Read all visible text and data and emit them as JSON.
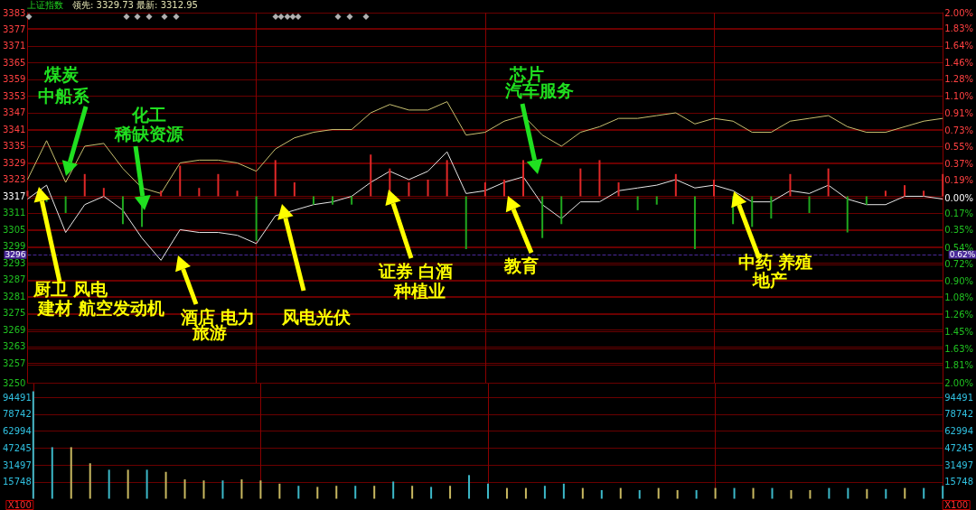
{
  "chart_data": [
    {
      "type": "line",
      "title": "上证指数",
      "subtitle": "领先: 3329.73 最新: 3312.95",
      "categories": [
        null,
        null,
        null,
        null,
        null,
        null,
        null,
        null,
        null,
        null,
        null,
        null,
        null,
        null,
        null,
        null,
        null,
        null,
        null,
        null,
        null,
        null,
        null,
        null,
        null,
        null,
        null,
        null,
        null,
        null,
        null,
        null,
        null,
        null,
        null,
        null,
        null,
        null,
        null,
        null,
        null,
        null,
        null,
        null,
        null,
        null,
        null,
        null,
        null
      ],
      "series": [
        {
          "color": "#e6e6e6",
          "values": [
            3316,
            3321,
            3304,
            3314,
            3317,
            3312,
            3302,
            3294,
            3305,
            3304,
            3304,
            3303,
            3300,
            3310,
            3312,
            3314,
            3315,
            3317,
            3322,
            3326,
            3323,
            3326,
            3333,
            3318,
            3319,
            3322,
            3324,
            3314,
            3309,
            3315,
            3315,
            3319,
            3320,
            3321,
            3323,
            3320,
            3321,
            3319,
            3315,
            3315,
            3319,
            3318,
            3321,
            3316,
            3314,
            3314,
            3317,
            3317,
            3316
          ]
        },
        {
          "color": "#c8c070",
          "values": [
            3323,
            3337,
            3322,
            3335,
            3336,
            3327,
            3320,
            3318,
            3329,
            3330,
            3330,
            3329,
            3326,
            3334,
            3338,
            3340,
            3341,
            3341,
            3347,
            3350,
            3348,
            3348,
            3351,
            3339,
            3340,
            3344,
            3346,
            3339,
            3335,
            3340,
            3342,
            3345,
            3345,
            3346,
            3347,
            3343,
            3345,
            3344,
            3340,
            3340,
            3344,
            3345,
            3346,
            3342,
            3340,
            3340,
            3342,
            3344,
            3345
          ]
        },
        {
          "type": "bar",
          "base": [
            3317,
            3317,
            3317,
            3317,
            3317,
            3317,
            3317,
            3317,
            3317,
            3317,
            3317,
            3317,
            3317,
            3317,
            3317,
            3317,
            3317,
            3317,
            3317,
            3317,
            3317,
            3317,
            3317,
            3317,
            3317,
            3317,
            3317,
            3317,
            3317,
            3317,
            3317,
            3317,
            3317,
            3317,
            3317,
            3317,
            3317,
            3317,
            3317,
            3317,
            3317,
            3317,
            3317,
            3317,
            3317,
            3317,
            3317,
            3317,
            3317
          ],
          "values": [
            2,
            -2,
            -6,
            8,
            3,
            -10,
            -11,
            2,
            11,
            3,
            8,
            2,
            -16,
            13,
            5,
            -3,
            -3,
            -3,
            15,
            10,
            5,
            6,
            13,
            -19,
            5,
            6,
            13,
            -15,
            -10,
            10,
            13,
            5,
            -5,
            -3,
            8,
            -19,
            6,
            -10,
            -11,
            -8,
            8,
            -6,
            10,
            -13,
            -3,
            2,
            4,
            2,
            8
          ],
          "colors": [
            "#e02828",
            "#1fa81f",
            "#1fa81f",
            "#e02828",
            "#e02828",
            "#1fa81f",
            "#1fa81f",
            "#e02828",
            "#e02828",
            "#e02828",
            "#e02828",
            "#e02828",
            "#1fa81f",
            "#e02828",
            "#e02828",
            "#1fa81f",
            "#1fa81f",
            "#1fa81f",
            "#e02828",
            "#e02828",
            "#e02828",
            "#e02828",
            "#e02828",
            "#1fa81f",
            "#e02828",
            "#e02828",
            "#e02828",
            "#1fa81f",
            "#1fa81f",
            "#e02828",
            "#e02828",
            "#e02828",
            "#1fa81f",
            "#1fa81f",
            "#e02828",
            "#1fa81f",
            "#e02828",
            "#1fa81f",
            "#1fa81f",
            "#1fa81f",
            "#e02828",
            "#1fa81f",
            "#e02828",
            "#1fa81f",
            "#1fa81f",
            "#e02828",
            "#e02828",
            "#e02828",
            "#e02828"
          ]
        }
      ],
      "ylim": [
        3250,
        3383
      ],
      "yticks": [
        3383,
        3377,
        3371,
        3365,
        3359,
        3353,
        3347,
        3341,
        3335,
        3329,
        3323,
        3317,
        3311,
        3305,
        3299,
        3293,
        3287,
        3281,
        3275,
        3269,
        3263,
        3257,
        3250
      ],
      "y2lim": [
        -2,
        2
      ],
      "y2ticks": [
        {
          "value": 2,
          "label": "2.00%"
        },
        {
          "value": 1.83,
          "label": "1.83%"
        },
        {
          "value": 1.64,
          "label": "1.64%"
        },
        {
          "value": 1.46,
          "label": "1.46%"
        },
        {
          "value": 1.28,
          "label": "1.28%"
        },
        {
          "value": 1.1,
          "label": "1.10%"
        },
        {
          "value": 0.91,
          "label": "0.91%"
        },
        {
          "value": 0.73,
          "label": "0.73%"
        },
        {
          "value": 0.55,
          "label": "0.55%"
        },
        {
          "value": 0.37,
          "label": "0.37%"
        },
        {
          "value": 0.19,
          "label": "0.19%"
        },
        {
          "value": 0,
          "label": "0.00%"
        },
        {
          "value": -0.17,
          "label": "0.17%"
        },
        {
          "value": -0.35,
          "label": "0.35%"
        },
        {
          "value": -0.54,
          "label": "0.54%"
        },
        {
          "value": -0.72,
          "label": "0.72%"
        },
        {
          "value": -0.9,
          "label": "0.90%"
        },
        {
          "value": -1.08,
          "label": "1.08%"
        },
        {
          "value": -1.26,
          "label": "1.26%"
        },
        {
          "value": -1.45,
          "label": "1.45%"
        },
        {
          "value": -1.63,
          "label": "1.63%"
        },
        {
          "value": -1.81,
          "label": "1.81%"
        },
        {
          "value": -2,
          "label": "2.00%"
        }
      ],
      "ref_lines": [
        {
          "axis": "y",
          "value": 3296,
          "label": "3296",
          "color": "#4a2a9a"
        }
      ],
      "annotations": [
        "煤炭",
        "中船系",
        "化工",
        "稀缺资源",
        "芯片",
        "汽车服务",
        "厨卫 风电",
        "建材 航空发动机",
        "酒店 电力",
        "旅游",
        "风电光伏",
        "证券 白酒",
        "种植业",
        "教育",
        "中药 养殖",
        "地产",
        "0.62%"
      ],
      "grid": true,
      "marker": "none",
      "line_style": "solid"
    },
    {
      "type": "bar",
      "ylabel": "X100",
      "categories": [
        null,
        null,
        null,
        null,
        null,
        null,
        null,
        null,
        null,
        null,
        null,
        null,
        null,
        null,
        null,
        null,
        null,
        null,
        null,
        null,
        null,
        null,
        null,
        null,
        null,
        null,
        null,
        null,
        null,
        null,
        null,
        null,
        null,
        null,
        null,
        null,
        null,
        null,
        null,
        null,
        null,
        null,
        null,
        null,
        null,
        null,
        null,
        null,
        null
      ],
      "values": [
        100000,
        48000,
        48000,
        33000,
        27000,
        27000,
        27000,
        25000,
        18000,
        17000,
        17000,
        18000,
        17000,
        14000,
        12000,
        11000,
        12000,
        12000,
        12000,
        16000,
        12000,
        11000,
        12000,
        22000,
        14000,
        10000,
        10000,
        12000,
        14000,
        10000,
        8000,
        10000,
        8000,
        10000,
        8000,
        8000,
        10000,
        10000,
        10000,
        10000,
        8000,
        8000,
        10000,
        10000,
        9000,
        9000,
        10000,
        10000,
        12000
      ],
      "colors": [
        "#3cb8c8",
        "#3cb8c8",
        "#c8b860",
        "#c8b860",
        "#3cb8c8",
        "#c8b860",
        "#3cb8c8",
        "#c8b860",
        "#c8b860",
        "#c8b860",
        "#3cb8c8",
        "#c8b860",
        "#c8b860",
        "#c8b860",
        "#3cb8c8",
        "#c8b860",
        "#c8b860",
        "#3cb8c8",
        "#c8b860",
        "#3cb8c8",
        "#c8b860",
        "#3cb8c8",
        "#c8b860",
        "#3cb8c8",
        "#3cb8c8",
        "#c8b860",
        "#c8b860",
        "#3cb8c8",
        "#3cb8c8",
        "#c8b860",
        "#3cb8c8",
        "#c8b860",
        "#3cb8c8",
        "#c8b860",
        "#c8b860",
        "#3cb8c8",
        "#c8b860",
        "#3cb8c8",
        "#c8b860",
        "#3cb8c8",
        "#c8b860",
        "#c8b860",
        "#3cb8c8",
        "#3cb8c8",
        "#c8b860",
        "#3cb8c8",
        "#c8b860",
        "#3cb8c8",
        "#3cb8c8"
      ],
      "ylim": [
        0,
        108000
      ],
      "yticks": [
        15748,
        31497,
        47245,
        62994,
        78742,
        94491
      ],
      "y2label": "X100",
      "y2lim": [
        0,
        108000
      ],
      "y2ticks": [
        15748,
        31497,
        47245,
        62994,
        78742,
        94491
      ],
      "grid": true
    }
  ]
}
